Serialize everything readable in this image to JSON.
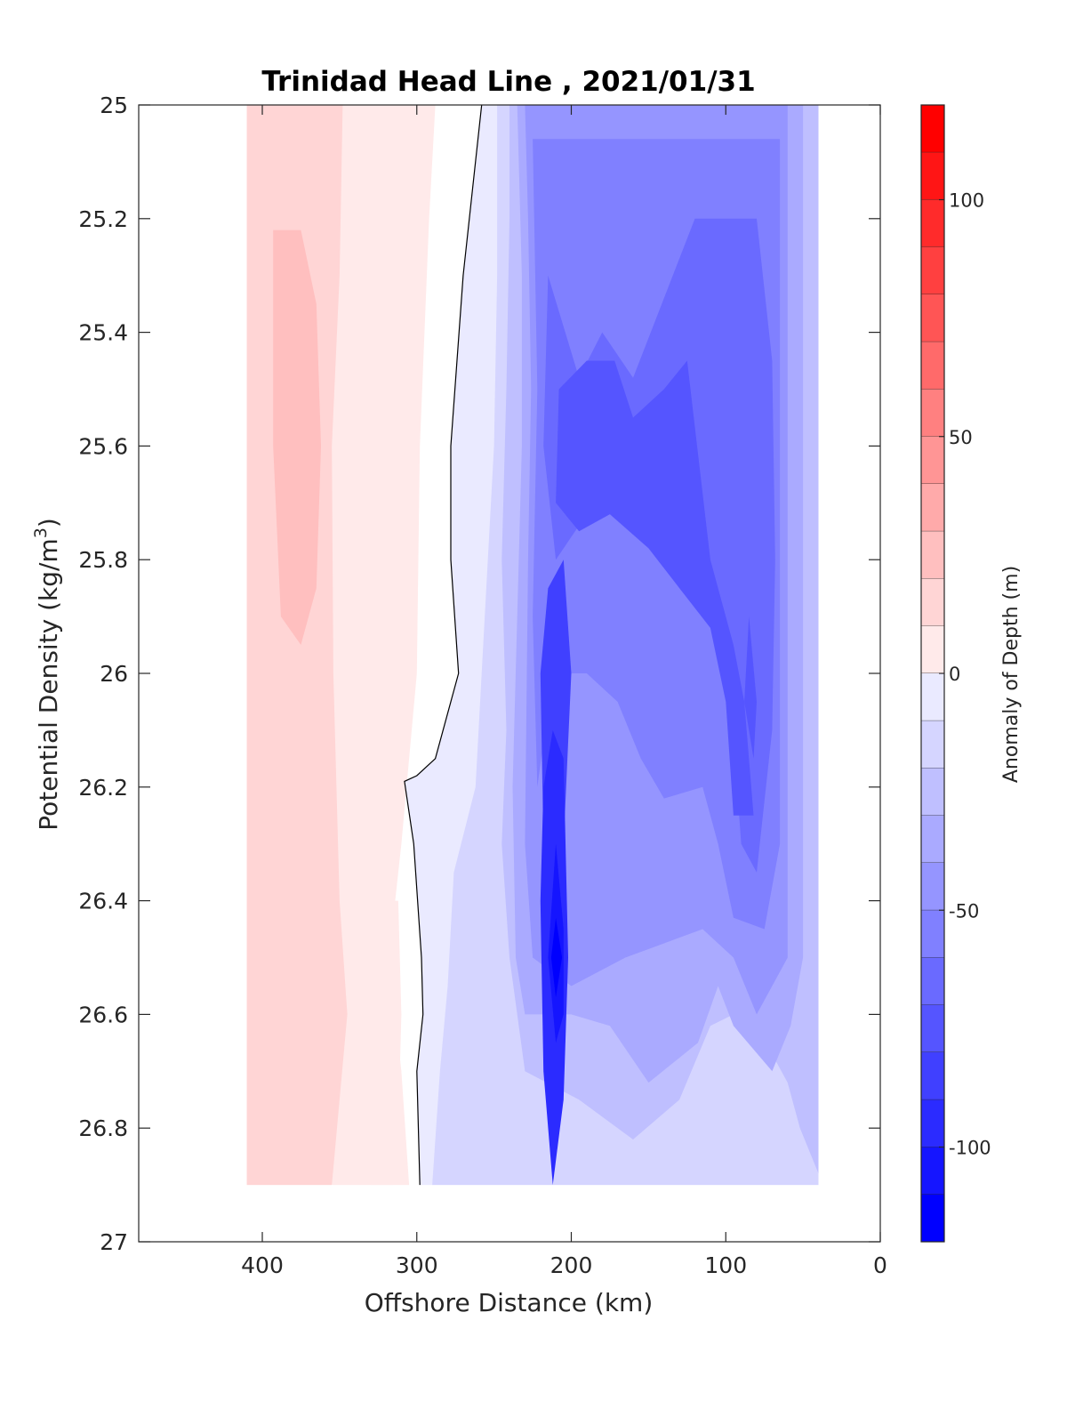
{
  "chart_data": {
    "type": "heatmap",
    "subtype": "filled-contour",
    "title": "Trinidad Head Line , 2021/01/31",
    "xlabel": "Offshore Distance (km)",
    "ylabel_main": "Potential Density (kg/m",
    "ylabel_sup": "3",
    "ylabel_close": ")",
    "xlim": [
      480,
      0
    ],
    "ylim": [
      25,
      27
    ],
    "x_reversed": true,
    "y_reversed": true,
    "x_ticks": [
      400,
      300,
      200,
      100,
      0
    ],
    "y_ticks": [
      25,
      25.2,
      25.4,
      25.6,
      25.8,
      26,
      26.2,
      26.4,
      26.6,
      26.8,
      27
    ],
    "grid": false,
    "colorbar": {
      "label": "Anomaly of Depth (m)",
      "range": [
        -120,
        120
      ],
      "step": 10,
      "ticks": [
        100,
        50,
        0,
        -50,
        -100
      ],
      "colors": {
        "low": "#0000ff",
        "zero": "#ffffff",
        "high": "#ff0000"
      }
    },
    "data_extent": {
      "x": [
        40,
        410
      ],
      "y": [
        25,
        26.9
      ]
    },
    "zero_contour": [
      [
        258,
        25.0
      ],
      [
        270,
        25.3
      ],
      [
        278,
        25.6
      ],
      [
        278,
        25.8
      ],
      [
        273,
        26.0
      ],
      [
        288,
        26.15
      ],
      [
        300,
        26.18
      ],
      [
        308,
        26.19
      ],
      [
        302,
        26.3
      ],
      [
        297,
        26.5
      ],
      [
        296,
        26.6
      ],
      [
        300,
        26.7
      ],
      [
        298,
        26.9
      ]
    ],
    "regions": [
      {
        "level": 10,
        "points": [
          [
            410,
            25
          ],
          [
            288,
            25
          ],
          [
            292,
            25.2
          ],
          [
            298,
            25.6
          ],
          [
            300,
            26
          ],
          [
            310,
            26.3
          ],
          [
            318,
            26.5
          ],
          [
            310,
            26.7
          ],
          [
            305,
            26.9
          ],
          [
            410,
            26.9
          ]
        ]
      },
      {
        "level": 20,
        "points": [
          [
            410,
            25
          ],
          [
            348,
            25
          ],
          [
            350,
            25.3
          ],
          [
            355,
            25.6
          ],
          [
            354,
            26
          ],
          [
            350,
            26.4
          ],
          [
            345,
            26.6
          ],
          [
            355,
            26.9
          ],
          [
            410,
            26.9
          ]
        ]
      },
      {
        "level": 30,
        "points": [
          [
            393,
            25.22
          ],
          [
            375,
            25.22
          ],
          [
            365,
            25.35
          ],
          [
            362,
            25.6
          ],
          [
            365,
            25.85
          ],
          [
            375,
            25.95
          ],
          [
            388,
            25.9
          ],
          [
            393,
            25.6
          ],
          [
            393,
            25.4
          ]
        ]
      },
      {
        "level": 10,
        "points": [
          [
            325,
            26.4
          ],
          [
            312,
            26.4
          ],
          [
            310,
            26.6
          ],
          [
            312,
            26.8
          ],
          [
            315,
            26.9
          ],
          [
            330,
            26.9
          ],
          [
            338,
            26.7
          ],
          [
            328,
            26.5
          ]
        ]
      },
      {
        "level": -10,
        "points": [
          [
            258,
            25
          ],
          [
            40,
            25
          ],
          [
            40,
            26.9
          ],
          [
            298,
            26.9
          ],
          [
            300,
            26.7
          ],
          [
            296,
            26.6
          ],
          [
            297,
            26.5
          ],
          [
            302,
            26.3
          ],
          [
            308,
            26.19
          ],
          [
            300,
            26.18
          ],
          [
            288,
            26.15
          ],
          [
            273,
            26.0
          ],
          [
            278,
            25.8
          ],
          [
            278,
            25.6
          ],
          [
            270,
            25.3
          ]
        ]
      },
      {
        "level": -20,
        "points": [
          [
            248,
            25
          ],
          [
            40,
            25
          ],
          [
            40,
            26.9
          ],
          [
            290,
            26.9
          ],
          [
            285,
            26.7
          ],
          [
            280,
            26.55
          ],
          [
            276,
            26.35
          ],
          [
            262,
            26.2
          ],
          [
            258,
            26.0
          ],
          [
            250,
            25.6
          ],
          [
            248,
            25.3
          ]
        ]
      },
      {
        "level": -30,
        "points": [
          [
            240,
            25
          ],
          [
            40,
            25
          ],
          [
            40,
            26.88
          ],
          [
            52,
            26.8
          ],
          [
            60,
            26.72
          ],
          [
            80,
            26.62
          ],
          [
            95,
            26.6
          ],
          [
            110,
            26.62
          ],
          [
            130,
            26.75
          ],
          [
            160,
            26.82
          ],
          [
            195,
            26.75
          ],
          [
            230,
            26.7
          ],
          [
            240,
            26.5
          ],
          [
            245,
            26.3
          ],
          [
            242,
            26.1
          ],
          [
            245,
            25.8
          ],
          [
            242,
            25.5
          ],
          [
            240,
            25.2
          ]
        ]
      },
      {
        "level": -40,
        "points": [
          [
            235,
            25
          ],
          [
            50,
            25
          ],
          [
            50,
            26.5
          ],
          [
            58,
            26.62
          ],
          [
            70,
            26.7
          ],
          [
            95,
            26.62
          ],
          [
            105,
            26.55
          ],
          [
            118,
            26.65
          ],
          [
            150,
            26.72
          ],
          [
            175,
            26.62
          ],
          [
            200,
            26.6
          ],
          [
            230,
            26.6
          ],
          [
            236,
            26.5
          ],
          [
            238,
            26.2
          ],
          [
            235,
            25.9
          ],
          [
            232,
            25.6
          ],
          [
            232,
            25.3
          ]
        ]
      },
      {
        "level": -50,
        "points": [
          [
            230,
            25
          ],
          [
            60,
            25
          ],
          [
            60,
            26.5
          ],
          [
            80,
            26.6
          ],
          [
            95,
            26.5
          ],
          [
            115,
            26.45
          ],
          [
            145,
            26.48
          ],
          [
            165,
            26.5
          ],
          [
            200,
            26.55
          ],
          [
            225,
            26.5
          ],
          [
            230,
            26.3
          ],
          [
            228,
            25.8
          ],
          [
            226,
            25.5
          ],
          [
            228,
            25.2
          ]
        ]
      },
      {
        "level": -60,
        "points": [
          [
            225,
            25.06
          ],
          [
            65,
            25.06
          ],
          [
            65,
            26.3
          ],
          [
            75,
            26.45
          ],
          [
            95,
            26.43
          ],
          [
            105,
            26.3
          ],
          [
            115,
            26.2
          ],
          [
            140,
            26.22
          ],
          [
            155,
            26.15
          ],
          [
            170,
            26.05
          ],
          [
            190,
            26.0
          ],
          [
            212,
            26.0
          ],
          [
            222,
            26.2
          ],
          [
            225,
            25.9
          ],
          [
            222,
            25.5
          ]
        ]
      },
      {
        "level": -70,
        "points": [
          [
            215,
            25.3
          ],
          [
            195,
            25.48
          ],
          [
            180,
            25.4
          ],
          [
            160,
            25.48
          ],
          [
            120,
            25.2
          ],
          [
            80,
            25.2
          ],
          [
            70,
            25.45
          ],
          [
            68,
            25.8
          ],
          [
            70,
            26.1
          ],
          [
            80,
            26.35
          ],
          [
            90,
            26.3
          ],
          [
            98,
            26.0
          ],
          [
            110,
            25.85
          ],
          [
            130,
            25.72
          ],
          [
            160,
            25.65
          ],
          [
            185,
            25.7
          ],
          [
            210,
            25.8
          ],
          [
            218,
            25.6
          ]
        ]
      },
      {
        "level": -80,
        "points": [
          [
            208,
            25.5
          ],
          [
            190,
            25.45
          ],
          [
            172,
            25.45
          ],
          [
            160,
            25.55
          ],
          [
            140,
            25.5
          ],
          [
            125,
            25.45
          ],
          [
            110,
            25.8
          ],
          [
            95,
            25.95
          ],
          [
            88,
            26.05
          ],
          [
            82,
            26.25
          ],
          [
            95,
            26.25
          ],
          [
            100,
            26.05
          ],
          [
            110,
            25.92
          ],
          [
            130,
            25.85
          ],
          [
            150,
            25.78
          ],
          [
            175,
            25.72
          ],
          [
            195,
            25.75
          ],
          [
            210,
            25.7
          ]
        ]
      },
      {
        "level": -90,
        "points": [
          [
            215,
            25.85
          ],
          [
            205,
            25.8
          ],
          [
            200,
            26.0
          ],
          [
            205,
            26.3
          ],
          [
            212,
            26.45
          ],
          [
            218,
            26.3
          ],
          [
            220,
            26.0
          ]
        ]
      },
      {
        "level": -100,
        "points": [
          [
            212,
            26.1
          ],
          [
            205,
            26.15
          ],
          [
            202,
            26.5
          ],
          [
            205,
            26.75
          ],
          [
            212,
            26.9
          ],
          [
            218,
            26.7
          ],
          [
            220,
            26.4
          ],
          [
            218,
            26.2
          ]
        ]
      },
      {
        "level": -110,
        "points": [
          [
            210,
            26.3
          ],
          [
            205,
            26.45
          ],
          [
            205,
            26.6
          ],
          [
            210,
            26.65
          ],
          [
            215,
            26.5
          ]
        ]
      },
      {
        "level": -120,
        "points": [
          [
            210,
            26.43
          ],
          [
            206,
            26.5
          ],
          [
            210,
            26.57
          ],
          [
            213,
            26.5
          ]
        ]
      },
      {
        "level": -80,
        "points": [
          [
            85,
            25.9
          ],
          [
            80,
            26.05
          ],
          [
            82,
            26.15
          ],
          [
            88,
            26.05
          ]
        ]
      }
    ]
  }
}
